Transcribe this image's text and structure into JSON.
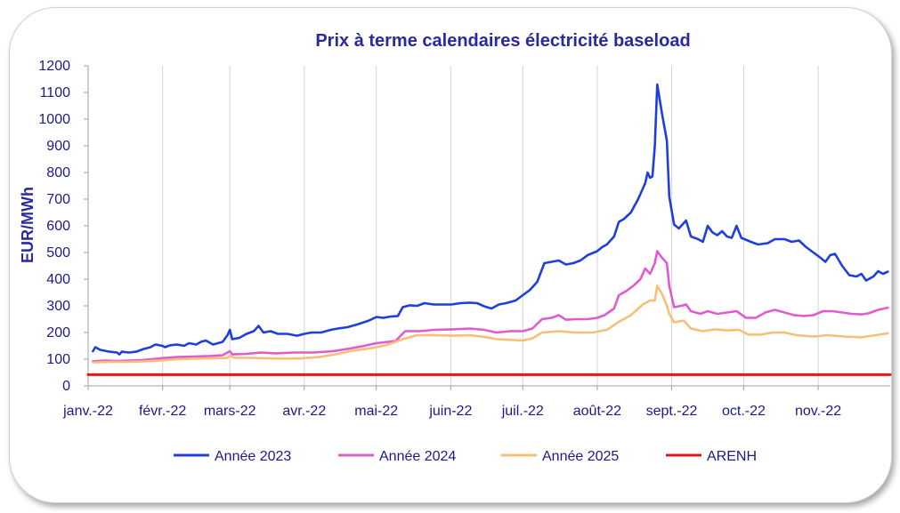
{
  "chart_data": {
    "type": "line",
    "title": "Prix à terme calendaires électricité baseload",
    "xlabel": "",
    "ylabel": "EUR/MWh",
    "ylim": [
      0,
      1200
    ],
    "yticks": [
      0,
      100,
      200,
      300,
      400,
      500,
      600,
      700,
      800,
      900,
      1000,
      1100,
      1200
    ],
    "xlim": [
      "2022-01-01",
      "2022-12-01"
    ],
    "xticks": [
      {
        "date": "2022-01-01",
        "label": "janv.-22"
      },
      {
        "date": "2022-02-01",
        "label": "févr.-22"
      },
      {
        "date": "2022-03-01",
        "label": "mars-22"
      },
      {
        "date": "2022-04-01",
        "label": "avr.-22"
      },
      {
        "date": "2022-05-01",
        "label": "mai-22"
      },
      {
        "date": "2022-06-01",
        "label": "juin-22"
      },
      {
        "date": "2022-07-01",
        "label": "juil.-22"
      },
      {
        "date": "2022-08-01",
        "label": "août-22"
      },
      {
        "date": "2022-09-01",
        "label": "sept.-22"
      },
      {
        "date": "2022-10-01",
        "label": "oct.-22"
      },
      {
        "date": "2022-11-01",
        "label": "nov.-22"
      }
    ],
    "grid": "vertical",
    "legend_position": "bottom",
    "series": [
      {
        "name": "Année 2023",
        "color": "#1f3fdc",
        "points": [
          [
            "2022-01-03",
            130
          ],
          [
            "2022-01-04",
            145
          ],
          [
            "2022-01-06",
            135
          ],
          [
            "2022-01-10",
            128
          ],
          [
            "2022-01-13",
            125
          ],
          [
            "2022-01-14",
            118
          ],
          [
            "2022-01-15",
            128
          ],
          [
            "2022-01-18",
            125
          ],
          [
            "2022-01-21",
            128
          ],
          [
            "2022-01-24",
            138
          ],
          [
            "2022-01-27",
            145
          ],
          [
            "2022-01-29",
            155
          ],
          [
            "2022-02-01",
            150
          ],
          [
            "2022-02-02",
            145
          ],
          [
            "2022-02-04",
            152
          ],
          [
            "2022-02-07",
            155
          ],
          [
            "2022-02-10",
            150
          ],
          [
            "2022-02-12",
            160
          ],
          [
            "2022-02-15",
            155
          ],
          [
            "2022-02-17",
            165
          ],
          [
            "2022-02-19",
            170
          ],
          [
            "2022-02-22",
            155
          ],
          [
            "2022-02-24",
            160
          ],
          [
            "2022-02-26",
            165
          ],
          [
            "2022-02-28",
            190
          ],
          [
            "2022-03-01",
            210
          ],
          [
            "2022-03-02",
            175
          ],
          [
            "2022-03-05",
            180
          ],
          [
            "2022-03-08",
            195
          ],
          [
            "2022-03-11",
            205
          ],
          [
            "2022-03-13",
            225
          ],
          [
            "2022-03-15",
            200
          ],
          [
            "2022-03-18",
            205
          ],
          [
            "2022-03-21",
            195
          ],
          [
            "2022-03-25",
            195
          ],
          [
            "2022-03-29",
            188
          ],
          [
            "2022-04-01",
            195
          ],
          [
            "2022-04-04",
            200
          ],
          [
            "2022-04-08",
            200
          ],
          [
            "2022-04-12",
            210
          ],
          [
            "2022-04-15",
            215
          ],
          [
            "2022-04-19",
            220
          ],
          [
            "2022-04-23",
            230
          ],
          [
            "2022-04-28",
            245
          ],
          [
            "2022-05-01",
            258
          ],
          [
            "2022-05-04",
            255
          ],
          [
            "2022-05-07",
            260
          ],
          [
            "2022-05-10",
            262
          ],
          [
            "2022-05-12",
            295
          ],
          [
            "2022-05-15",
            302
          ],
          [
            "2022-05-18",
            300
          ],
          [
            "2022-05-21",
            310
          ],
          [
            "2022-05-25",
            305
          ],
          [
            "2022-05-29",
            305
          ],
          [
            "2022-06-01",
            305
          ],
          [
            "2022-06-05",
            310
          ],
          [
            "2022-06-09",
            312
          ],
          [
            "2022-06-12",
            310
          ],
          [
            "2022-06-15",
            298
          ],
          [
            "2022-06-18",
            290
          ],
          [
            "2022-06-21",
            305
          ],
          [
            "2022-06-24",
            310
          ],
          [
            "2022-06-28",
            320
          ],
          [
            "2022-07-01",
            340
          ],
          [
            "2022-07-04",
            360
          ],
          [
            "2022-07-07",
            390
          ],
          [
            "2022-07-10",
            460
          ],
          [
            "2022-07-13",
            465
          ],
          [
            "2022-07-16",
            470
          ],
          [
            "2022-07-19",
            455
          ],
          [
            "2022-07-22",
            460
          ],
          [
            "2022-07-25",
            470
          ],
          [
            "2022-07-28",
            490
          ],
          [
            "2022-08-01",
            505
          ],
          [
            "2022-08-03",
            520
          ],
          [
            "2022-08-05",
            530
          ],
          [
            "2022-08-08",
            560
          ],
          [
            "2022-08-10",
            615
          ],
          [
            "2022-08-12",
            625
          ],
          [
            "2022-08-15",
            650
          ],
          [
            "2022-08-18",
            700
          ],
          [
            "2022-08-21",
            760
          ],
          [
            "2022-08-22",
            800
          ],
          [
            "2022-08-23",
            780
          ],
          [
            "2022-08-24",
            785
          ],
          [
            "2022-08-25",
            900
          ],
          [
            "2022-08-26",
            1130
          ],
          [
            "2022-08-28",
            1020
          ],
          [
            "2022-08-30",
            920
          ],
          [
            "2022-08-31",
            710
          ],
          [
            "2022-09-02",
            605
          ],
          [
            "2022-09-04",
            590
          ],
          [
            "2022-09-06",
            610
          ],
          [
            "2022-09-07",
            620
          ],
          [
            "2022-09-09",
            560
          ],
          [
            "2022-09-12",
            550
          ],
          [
            "2022-09-14",
            540
          ],
          [
            "2022-09-16",
            600
          ],
          [
            "2022-09-18",
            575
          ],
          [
            "2022-09-20",
            565
          ],
          [
            "2022-09-22",
            580
          ],
          [
            "2022-09-24",
            560
          ],
          [
            "2022-09-26",
            555
          ],
          [
            "2022-09-28",
            600
          ],
          [
            "2022-09-30",
            555
          ],
          [
            "2022-10-04",
            540
          ],
          [
            "2022-10-07",
            530
          ],
          [
            "2022-10-11",
            535
          ],
          [
            "2022-10-14",
            550
          ],
          [
            "2022-10-18",
            550
          ],
          [
            "2022-10-21",
            540
          ],
          [
            "2022-10-24",
            545
          ],
          [
            "2022-10-27",
            520
          ],
          [
            "2022-10-30",
            500
          ],
          [
            "2022-11-02",
            480
          ],
          [
            "2022-11-04",
            465
          ],
          [
            "2022-11-06",
            490
          ],
          [
            "2022-11-08",
            495
          ],
          [
            "2022-11-11",
            450
          ],
          [
            "2022-11-14",
            415
          ],
          [
            "2022-11-17",
            410
          ],
          [
            "2022-11-19",
            420
          ],
          [
            "2022-11-21",
            395
          ],
          [
            "2022-11-24",
            410
          ],
          [
            "2022-11-26",
            430
          ],
          [
            "2022-11-28",
            420
          ],
          [
            "2022-11-30",
            428
          ]
        ]
      },
      {
        "name": "Année 2024",
        "color": "#e05ccd",
        "points": [
          [
            "2022-01-03",
            92
          ],
          [
            "2022-01-08",
            95
          ],
          [
            "2022-01-13",
            93
          ],
          [
            "2022-01-18",
            95
          ],
          [
            "2022-01-24",
            97
          ],
          [
            "2022-01-31",
            103
          ],
          [
            "2022-02-07",
            108
          ],
          [
            "2022-02-14",
            110
          ],
          [
            "2022-02-21",
            112
          ],
          [
            "2022-02-26",
            115
          ],
          [
            "2022-03-01",
            130
          ],
          [
            "2022-03-02",
            118
          ],
          [
            "2022-03-08",
            120
          ],
          [
            "2022-03-14",
            125
          ],
          [
            "2022-03-20",
            122
          ],
          [
            "2022-03-28",
            125
          ],
          [
            "2022-04-05",
            125
          ],
          [
            "2022-04-13",
            130
          ],
          [
            "2022-04-20",
            140
          ],
          [
            "2022-04-26",
            150
          ],
          [
            "2022-05-01",
            160
          ],
          [
            "2022-05-09",
            168
          ],
          [
            "2022-05-13",
            205
          ],
          [
            "2022-05-19",
            205
          ],
          [
            "2022-05-25",
            210
          ],
          [
            "2022-06-02",
            212
          ],
          [
            "2022-06-09",
            215
          ],
          [
            "2022-06-15",
            210
          ],
          [
            "2022-06-20",
            200
          ],
          [
            "2022-06-26",
            205
          ],
          [
            "2022-07-01",
            205
          ],
          [
            "2022-07-05",
            215
          ],
          [
            "2022-07-09",
            250
          ],
          [
            "2022-07-13",
            255
          ],
          [
            "2022-07-16",
            265
          ],
          [
            "2022-07-19",
            248
          ],
          [
            "2022-07-23",
            250
          ],
          [
            "2022-07-28",
            250
          ],
          [
            "2022-08-01",
            255
          ],
          [
            "2022-08-04",
            265
          ],
          [
            "2022-08-08",
            290
          ],
          [
            "2022-08-10",
            340
          ],
          [
            "2022-08-13",
            355
          ],
          [
            "2022-08-16",
            375
          ],
          [
            "2022-08-19",
            400
          ],
          [
            "2022-08-21",
            440
          ],
          [
            "2022-08-23",
            420
          ],
          [
            "2022-08-25",
            460
          ],
          [
            "2022-08-26",
            505
          ],
          [
            "2022-08-28",
            480
          ],
          [
            "2022-08-30",
            460
          ],
          [
            "2022-08-31",
            375
          ],
          [
            "2022-09-02",
            295
          ],
          [
            "2022-09-05",
            300
          ],
          [
            "2022-09-07",
            305
          ],
          [
            "2022-09-09",
            280
          ],
          [
            "2022-09-13",
            270
          ],
          [
            "2022-09-16",
            280
          ],
          [
            "2022-09-20",
            270
          ],
          [
            "2022-09-24",
            275
          ],
          [
            "2022-09-28",
            280
          ],
          [
            "2022-10-02",
            255
          ],
          [
            "2022-10-06",
            255
          ],
          [
            "2022-10-10",
            275
          ],
          [
            "2022-10-14",
            285
          ],
          [
            "2022-10-18",
            275
          ],
          [
            "2022-10-22",
            265
          ],
          [
            "2022-10-26",
            262
          ],
          [
            "2022-10-30",
            265
          ],
          [
            "2022-11-03",
            280
          ],
          [
            "2022-11-07",
            280
          ],
          [
            "2022-11-11",
            275
          ],
          [
            "2022-11-15",
            270
          ],
          [
            "2022-11-19",
            268
          ],
          [
            "2022-11-22",
            272
          ],
          [
            "2022-11-26",
            285
          ],
          [
            "2022-11-30",
            293
          ]
        ]
      },
      {
        "name": "Année 2025",
        "color": "#f7be78",
        "points": [
          [
            "2022-01-03",
            88
          ],
          [
            "2022-01-10",
            90
          ],
          [
            "2022-01-17",
            90
          ],
          [
            "2022-01-24",
            92
          ],
          [
            "2022-01-31",
            95
          ],
          [
            "2022-02-07",
            100
          ],
          [
            "2022-02-14",
            102
          ],
          [
            "2022-02-21",
            103
          ],
          [
            "2022-02-28",
            105
          ],
          [
            "2022-03-01",
            112
          ],
          [
            "2022-03-03",
            105
          ],
          [
            "2022-03-10",
            105
          ],
          [
            "2022-03-17",
            103
          ],
          [
            "2022-03-24",
            102
          ],
          [
            "2022-03-31",
            103
          ],
          [
            "2022-04-07",
            108
          ],
          [
            "2022-04-14",
            118
          ],
          [
            "2022-04-21",
            132
          ],
          [
            "2022-04-28",
            140
          ],
          [
            "2022-05-05",
            152
          ],
          [
            "2022-05-12",
            175
          ],
          [
            "2022-05-18",
            190
          ],
          [
            "2022-05-25",
            190
          ],
          [
            "2022-06-02",
            188
          ],
          [
            "2022-06-09",
            190
          ],
          [
            "2022-06-16",
            182
          ],
          [
            "2022-06-20",
            175
          ],
          [
            "2022-06-27",
            172
          ],
          [
            "2022-07-01",
            170
          ],
          [
            "2022-07-05",
            178
          ],
          [
            "2022-07-09",
            200
          ],
          [
            "2022-07-16",
            205
          ],
          [
            "2022-07-23",
            200
          ],
          [
            "2022-07-30",
            200
          ],
          [
            "2022-08-05",
            210
          ],
          [
            "2022-08-10",
            240
          ],
          [
            "2022-08-15",
            265
          ],
          [
            "2022-08-20",
            305
          ],
          [
            "2022-08-23",
            320
          ],
          [
            "2022-08-25",
            320
          ],
          [
            "2022-08-26",
            375
          ],
          [
            "2022-08-28",
            345
          ],
          [
            "2022-08-30",
            300
          ],
          [
            "2022-08-31",
            270
          ],
          [
            "2022-09-02",
            238
          ],
          [
            "2022-09-06",
            245
          ],
          [
            "2022-09-09",
            215
          ],
          [
            "2022-09-14",
            205
          ],
          [
            "2022-09-19",
            212
          ],
          [
            "2022-09-24",
            208
          ],
          [
            "2022-09-29",
            210
          ],
          [
            "2022-10-03",
            192
          ],
          [
            "2022-10-08",
            192
          ],
          [
            "2022-10-13",
            200
          ],
          [
            "2022-10-18",
            200
          ],
          [
            "2022-10-23",
            190
          ],
          [
            "2022-10-30",
            185
          ],
          [
            "2022-11-05",
            190
          ],
          [
            "2022-11-12",
            185
          ],
          [
            "2022-11-19",
            182
          ],
          [
            "2022-11-25",
            190
          ],
          [
            "2022-11-30",
            197
          ]
        ]
      },
      {
        "name": "ARENH",
        "color": "#e01818",
        "points": [
          [
            "2022-01-01",
            42
          ],
          [
            "2022-12-01",
            42
          ]
        ]
      }
    ]
  }
}
